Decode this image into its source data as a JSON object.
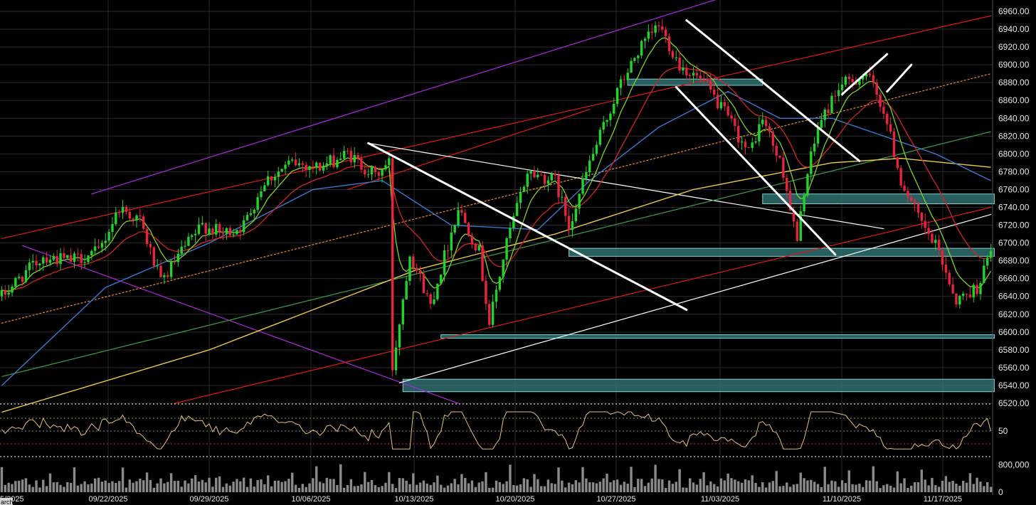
{
  "colors": {
    "background": "#000000",
    "grid": "#2a2a2a",
    "candle_up": "#22d42a",
    "candle_down": "#e8243c",
    "ema_fast": "#7ed321",
    "ema_mid": "#d0242a",
    "sma_50": "#3a78d0",
    "sma_100": "#e8c84a",
    "sma_200": "#3aa04a",
    "zone_fill": "#2f6e6e",
    "zone_edge": "#7fd0d0",
    "channel_purple": "#b026e0",
    "channel_red": "#e01818",
    "channel_orange": "#f08a24",
    "trend_white": "#ffffff",
    "rsi_line": "#e3c07a",
    "volume_bar": "#8a8a8a"
  },
  "chart_data": {
    "type": "candlestick",
    "instrument_hint": "equity index futures, 1-hour style bars",
    "x_axis": {
      "labels": [
        "09/22/2025",
        "09/29/2025",
        "10/06/2025",
        "10/13/2025",
        "10/20/2025",
        "10/27/2025",
        "11/03/2025",
        "11/10/2025",
        "11/17/2025"
      ],
      "left_partial_label": "5/2025",
      "bottom_left_tag": "arch"
    },
    "y_axis": {
      "side": "right",
      "ylim": [
        6520,
        6960
      ],
      "ticks": [
        6960,
        6940,
        6920,
        6900,
        6880,
        6860,
        6840,
        6820,
        6800,
        6780,
        6760,
        6740,
        6720,
        6700,
        6680,
        6660,
        6640,
        6620,
        6600,
        6580,
        6560,
        6540,
        6520
      ]
    },
    "path_anchors": [
      [
        0,
        6640
      ],
      [
        5,
        6660
      ],
      [
        12,
        6685
      ],
      [
        20,
        6680
      ],
      [
        28,
        6690
      ],
      [
        34,
        6740
      ],
      [
        40,
        6725
      ],
      [
        46,
        6655
      ],
      [
        52,
        6690
      ],
      [
        58,
        6720
      ],
      [
        64,
        6710
      ],
      [
        70,
        6720
      ],
      [
        76,
        6770
      ],
      [
        84,
        6790
      ],
      [
        92,
        6785
      ],
      [
        100,
        6800
      ],
      [
        108,
        6775
      ],
      [
        112,
        6790
      ],
      [
        113,
        6560
      ],
      [
        118,
        6690
      ],
      [
        124,
        6630
      ],
      [
        132,
        6740
      ],
      [
        138,
        6690
      ],
      [
        141,
        6610
      ],
      [
        146,
        6700
      ],
      [
        152,
        6780
      ],
      [
        160,
        6770
      ],
      [
        164,
        6720
      ],
      [
        170,
        6790
      ],
      [
        175,
        6840
      ],
      [
        178,
        6870
      ],
      [
        184,
        6915
      ],
      [
        190,
        6945
      ],
      [
        196,
        6900
      ],
      [
        203,
        6880
      ],
      [
        210,
        6840
      ],
      [
        216,
        6800
      ],
      [
        220,
        6840
      ],
      [
        226,
        6780
      ],
      [
        230,
        6700
      ],
      [
        232,
        6760
      ],
      [
        236,
        6830
      ],
      [
        242,
        6875
      ],
      [
        250,
        6890
      ],
      [
        255,
        6850
      ],
      [
        260,
        6770
      ],
      [
        266,
        6720
      ],
      [
        271,
        6690
      ],
      [
        276,
        6635
      ],
      [
        282,
        6650
      ],
      [
        286,
        6690
      ]
    ],
    "n_bars": 287,
    "ema_fast_period": 8,
    "ema_mid_period": 21,
    "sma_50_anchors": [
      [
        0,
        6540
      ],
      [
        30,
        6650
      ],
      [
        60,
        6700
      ],
      [
        90,
        6760
      ],
      [
        110,
        6770
      ],
      [
        130,
        6720
      ],
      [
        155,
        6715
      ],
      [
        170,
        6770
      ],
      [
        190,
        6830
      ],
      [
        210,
        6870
      ],
      [
        225,
        6840
      ],
      [
        240,
        6840
      ],
      [
        255,
        6820
      ],
      [
        270,
        6800
      ],
      [
        286,
        6770
      ]
    ],
    "sma_100_anchors": [
      [
        0,
        6510
      ],
      [
        60,
        6580
      ],
      [
        120,
        6670
      ],
      [
        160,
        6710
      ],
      [
        200,
        6760
      ],
      [
        240,
        6790
      ],
      [
        260,
        6795
      ],
      [
        286,
        6785
      ]
    ],
    "sma_200_anchors": [
      [
        0,
        6550
      ],
      [
        286,
        6825
      ]
    ],
    "drawn_lines": {
      "purple_channel_upper": [
        [
          26,
          6755
        ],
        [
          208,
          6975
        ]
      ],
      "purple_channel_lower": [
        [
          6,
          6697
        ],
        [
          132,
          6520
        ]
      ],
      "red_channel_upper": [
        [
          0,
          6705
        ],
        [
          286,
          6955
        ]
      ],
      "red_channel_lower": [
        [
          50,
          6520
        ],
        [
          286,
          6740
        ]
      ],
      "orange_dotted_mid": [
        [
          0,
          6610
        ],
        [
          286,
          6890
        ]
      ],
      "red_short_segment": [
        [
          100,
          6760
        ],
        [
          170,
          6850
        ]
      ],
      "white_wedge_upper": [
        [
          106,
          6812
        ],
        [
          255,
          6716
        ]
      ],
      "white_wedge_lower": [
        [
          115,
          6543
        ],
        [
          286,
          6732
        ]
      ],
      "white_bold_1": [
        [
          106,
          6812
        ],
        [
          198,
          6625
        ]
      ],
      "white_bold_2": [
        [
          198,
          6950
        ],
        [
          248,
          6792
        ]
      ],
      "white_bold_3": [
        [
          195,
          6875
        ],
        [
          241,
          6687
        ]
      ],
      "white_bold_4": [
        [
          243,
          6867
        ],
        [
          256,
          6912
        ]
      ],
      "white_bold_5": [
        [
          256,
          6870
        ],
        [
          263,
          6900
        ]
      ]
    },
    "zones": [
      {
        "from": 181,
        "to": 219,
        "low": 6877,
        "high": 6884
      },
      {
        "from": 220,
        "to": 286,
        "low": 6744,
        "high": 6755
      },
      {
        "from": 164,
        "to": 286,
        "low": 6685,
        "high": 6694
      },
      {
        "from": 127,
        "to": 286,
        "low": 6593,
        "high": 6597
      },
      {
        "from": 116,
        "to": 286,
        "low": 6533,
        "high": 6547
      }
    ],
    "rsi": {
      "ylim": [
        10,
        90
      ],
      "levels": [
        70,
        50,
        30,
        10
      ],
      "labels": [
        "50"
      ],
      "last_value": 50
    },
    "volume": {
      "ylim": [
        0,
        950000
      ],
      "tick_labels": [
        "800,000",
        "0"
      ],
      "tick_values": [
        800000,
        0
      ]
    }
  }
}
